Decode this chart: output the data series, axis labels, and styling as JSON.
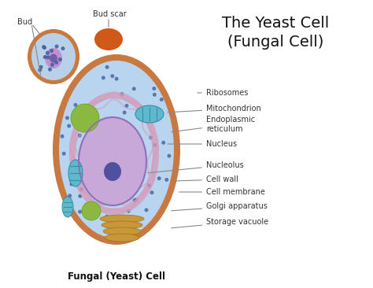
{
  "title_line1": "The Yeast Cell",
  "title_line2": "(Fungal Cell)",
  "subtitle": "Fungal (Yeast) Cell",
  "bg_color": "#ffffff",
  "cell_wall_color": "#c87941",
  "cell_interior_color": "#b8d4ee",
  "nucleus_color": "#c8a8d8",
  "nucleolus_color": "#5050a0",
  "bud_wall_color": "#c87941",
  "bud_interior_color": "#b8d0e8",
  "bud_scar_color": "#d05818",
  "er_color": "#d898b8",
  "vacuole_green_large": "#8ab840",
  "vacuole_green_small": "#8ab840",
  "mito_color": "#60b8cc",
  "mito_edge": "#3090a8",
  "golgi_color": "#c89838",
  "ribosome_dot_color": "#4060a0",
  "label_color": "#333333",
  "line_color": "#888888"
}
